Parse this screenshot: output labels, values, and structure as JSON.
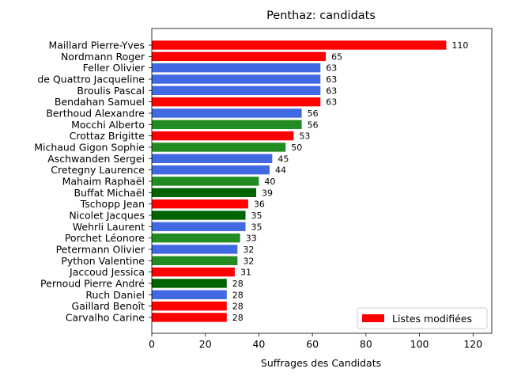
{
  "chart_data": {
    "type": "bar",
    "orientation": "horizontal",
    "title": "Penthaz: candidats",
    "xlabel": "Suffrages des Candidats",
    "ylabel": "",
    "xlim": [
      0,
      127
    ],
    "xticks": [
      0,
      20,
      40,
      60,
      80,
      100,
      120
    ],
    "grid": false,
    "legend": {
      "placement": "lower-right",
      "entries": [
        {
          "label": "Listes modifiées",
          "color": "#ff0000"
        }
      ]
    },
    "bars": [
      {
        "label": "Maillard Pierre-Yves",
        "value": 110,
        "color": "#ff0000"
      },
      {
        "label": "Nordmann Roger",
        "value": 65,
        "color": "#ff0000"
      },
      {
        "label": "Feller Olivier",
        "value": 63,
        "color": "#4169e1"
      },
      {
        "label": "de Quattro Jacqueline",
        "value": 63,
        "color": "#4169e1"
      },
      {
        "label": "Broulis Pascal",
        "value": 63,
        "color": "#4169e1"
      },
      {
        "label": "Bendahan Samuel",
        "value": 63,
        "color": "#ff0000"
      },
      {
        "label": "Berthoud Alexandre",
        "value": 56,
        "color": "#4169e1"
      },
      {
        "label": "Mocchi Alberto",
        "value": 56,
        "color": "#228b22"
      },
      {
        "label": "Crottaz Brigitte",
        "value": 53,
        "color": "#ff0000"
      },
      {
        "label": "Michaud Gigon Sophie",
        "value": 50,
        "color": "#228b22"
      },
      {
        "label": "Aschwanden Sergei",
        "value": 45,
        "color": "#4169e1"
      },
      {
        "label": "Cretegny Laurence",
        "value": 44,
        "color": "#4169e1"
      },
      {
        "label": "Mahaim Raphaël",
        "value": 40,
        "color": "#228b22"
      },
      {
        "label": "Buffat Michaël",
        "value": 39,
        "color": "#006400"
      },
      {
        "label": "Tschopp Jean",
        "value": 36,
        "color": "#ff0000"
      },
      {
        "label": "Nicolet Jacques",
        "value": 35,
        "color": "#006400"
      },
      {
        "label": "Wehrli Laurent",
        "value": 35,
        "color": "#4169e1"
      },
      {
        "label": "Porchet Léonore",
        "value": 33,
        "color": "#228b22"
      },
      {
        "label": "Petermann Olivier",
        "value": 32,
        "color": "#4169e1"
      },
      {
        "label": "Python Valentine",
        "value": 32,
        "color": "#228b22"
      },
      {
        "label": "Jaccoud Jessica",
        "value": 31,
        "color": "#ff0000"
      },
      {
        "label": "Pernoud Pierre André",
        "value": 28,
        "color": "#006400"
      },
      {
        "label": "Ruch Daniel",
        "value": 28,
        "color": "#4169e1"
      },
      {
        "label": "Gaillard Benoît",
        "value": 28,
        "color": "#ff0000"
      },
      {
        "label": "Carvalho Carine",
        "value": 28,
        "color": "#ff0000"
      }
    ]
  }
}
